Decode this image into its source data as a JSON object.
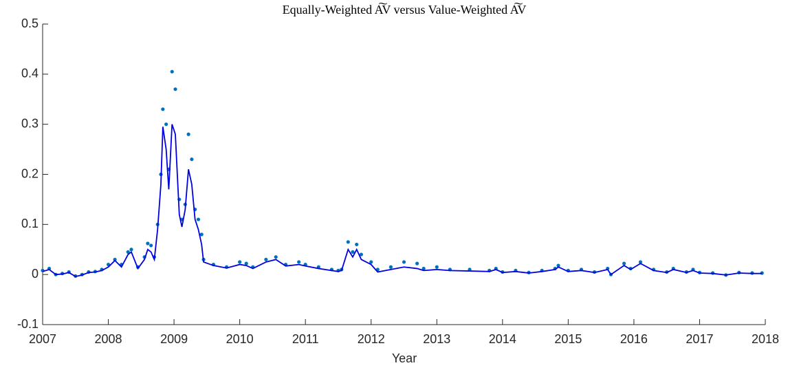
{
  "chart_data": {
    "type": "line",
    "title": "Equally-Weighted A͠V versus Value-Weighted A͠V",
    "xlabel": "Year",
    "x": [
      2007.0,
      2007.1,
      2007.2,
      2007.3,
      2007.4,
      2007.5,
      2007.6,
      2007.7,
      2007.8,
      2007.9,
      2008.0,
      2008.1,
      2008.2,
      2008.3,
      2008.35,
      2008.45,
      2008.55,
      2008.6,
      2008.65,
      2008.7,
      2008.75,
      2008.8,
      2008.83,
      2008.88,
      2008.92,
      2008.97,
      2009.02,
      2009.08,
      2009.12,
      2009.17,
      2009.22,
      2009.27,
      2009.32,
      2009.37,
      2009.42,
      2009.45,
      2009.6,
      2009.8,
      2010.0,
      2010.1,
      2010.2,
      2010.4,
      2010.55,
      2010.7,
      2010.9,
      2011.0,
      2011.2,
      2011.4,
      2011.5,
      2011.55,
      2011.65,
      2011.72,
      2011.78,
      2011.85,
      2012.0,
      2012.1,
      2012.3,
      2012.5,
      2012.7,
      2012.8,
      2013.0,
      2013.2,
      2013.5,
      2013.8,
      2013.9,
      2014.0,
      2014.2,
      2014.4,
      2014.6,
      2014.8,
      2014.85,
      2015.0,
      2015.2,
      2015.4,
      2015.6,
      2015.65,
      2015.85,
      2015.95,
      2016.1,
      2016.3,
      2016.5,
      2016.6,
      2016.8,
      2016.9,
      2017.0,
      2017.2,
      2017.4,
      2017.6,
      2017.8,
      2017.95
    ],
    "series": [
      {
        "mode": "markers",
        "color": "#0072bd",
        "values": [
          0.008,
          0.012,
          0.0,
          0.002,
          0.005,
          -0.003,
          0.0,
          0.005,
          0.006,
          0.01,
          0.02,
          0.03,
          0.02,
          0.045,
          0.05,
          0.015,
          0.035,
          0.062,
          0.058,
          0.035,
          0.1,
          0.2,
          0.33,
          0.3,
          0.21,
          0.405,
          0.37,
          0.15,
          0.11,
          0.14,
          0.28,
          0.23,
          0.13,
          0.11,
          0.08,
          0.03,
          0.02,
          0.015,
          0.025,
          0.022,
          0.015,
          0.03,
          0.035,
          0.02,
          0.025,
          0.02,
          0.015,
          0.01,
          0.008,
          0.01,
          0.065,
          0.045,
          0.06,
          0.04,
          0.025,
          0.01,
          0.015,
          0.025,
          0.022,
          0.012,
          0.015,
          0.01,
          0.01,
          0.008,
          0.012,
          0.005,
          0.008,
          0.004,
          0.008,
          0.012,
          0.018,
          0.008,
          0.01,
          0.005,
          0.012,
          0.0,
          0.022,
          0.012,
          0.025,
          0.01,
          0.005,
          0.012,
          0.005,
          0.01,
          0.004,
          0.003,
          -0.001,
          0.004,
          0.003,
          0.003
        ]
      },
      {
        "mode": "line",
        "color": "#0000e0",
        "values": [
          0.006,
          0.01,
          0.0,
          0.001,
          0.004,
          -0.004,
          -0.001,
          0.004,
          0.005,
          0.008,
          0.015,
          0.028,
          0.015,
          0.04,
          0.045,
          0.012,
          0.03,
          0.05,
          0.045,
          0.03,
          0.09,
          0.18,
          0.295,
          0.25,
          0.17,
          0.3,
          0.28,
          0.12,
          0.095,
          0.13,
          0.21,
          0.18,
          0.11,
          0.09,
          0.06,
          0.025,
          0.018,
          0.013,
          0.02,
          0.018,
          0.012,
          0.025,
          0.03,
          0.017,
          0.02,
          0.017,
          0.012,
          0.008,
          0.006,
          0.008,
          0.05,
          0.035,
          0.05,
          0.03,
          0.02,
          0.005,
          0.01,
          0.015,
          0.012,
          0.008,
          0.01,
          0.008,
          0.007,
          0.006,
          0.01,
          0.004,
          0.006,
          0.003,
          0.006,
          0.01,
          0.015,
          0.006,
          0.008,
          0.004,
          0.01,
          0.0,
          0.018,
          0.01,
          0.022,
          0.008,
          0.004,
          0.01,
          0.004,
          0.008,
          0.003,
          0.002,
          -0.001,
          0.003,
          0.002,
          0.002
        ]
      }
    ],
    "xlim": [
      2007,
      2018
    ],
    "xticks": [
      2007,
      2008,
      2009,
      2010,
      2011,
      2012,
      2013,
      2014,
      2015,
      2016,
      2017,
      2018
    ],
    "ylim": [
      -0.1,
      0.5
    ],
    "yticks": [
      -0.1,
      0,
      0.1,
      0.2,
      0.3,
      0.4,
      0.5
    ]
  }
}
